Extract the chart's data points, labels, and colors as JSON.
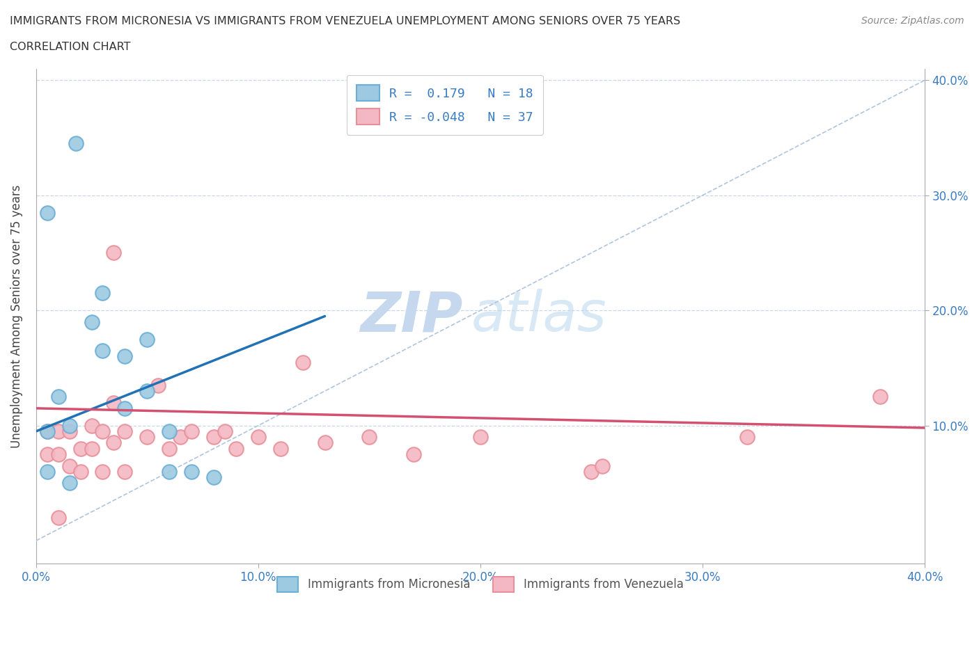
{
  "title_line1": "IMMIGRANTS FROM MICRONESIA VS IMMIGRANTS FROM VENEZUELA UNEMPLOYMENT AMONG SENIORS OVER 75 YEARS",
  "title_line2": "CORRELATION CHART",
  "source": "Source: ZipAtlas.com",
  "ylabel": "Unemployment Among Seniors over 75 years",
  "xlim": [
    0.0,
    0.4
  ],
  "ylim": [
    -0.02,
    0.41
  ],
  "xtick_labels": [
    "0.0%",
    "10.0%",
    "20.0%",
    "30.0%",
    "40.0%"
  ],
  "xtick_vals": [
    0.0,
    0.1,
    0.2,
    0.3,
    0.4
  ],
  "ytick_labels": [
    "10.0%",
    "20.0%",
    "30.0%",
    "40.0%"
  ],
  "ytick_vals": [
    0.1,
    0.2,
    0.3,
    0.4
  ],
  "micronesia_color": "#6baed6",
  "micronesia_face": "#9ecae1",
  "venezuela_color": "#e8909a",
  "venezuela_face": "#f4b8c4",
  "R_micronesia": 0.179,
  "N_micronesia": 18,
  "R_venezuela": -0.048,
  "N_venezuela": 37,
  "legend_label_micronesia": "Immigrants from Micronesia",
  "legend_label_venezuela": "Immigrants from Venezuela",
  "watermark_zip": "ZIP",
  "watermark_atlas": "atlas",
  "micronesia_x": [
    0.005,
    0.018,
    0.005,
    0.03,
    0.03,
    0.005,
    0.01,
    0.015,
    0.04,
    0.04,
    0.05,
    0.05,
    0.06,
    0.06,
    0.07,
    0.08,
    0.025,
    0.015
  ],
  "micronesia_y": [
    0.285,
    0.345,
    0.06,
    0.215,
    0.165,
    0.095,
    0.125,
    0.1,
    0.16,
    0.115,
    0.175,
    0.13,
    0.095,
    0.06,
    0.06,
    0.055,
    0.19,
    0.05
  ],
  "venezuela_x": [
    0.005,
    0.005,
    0.01,
    0.01,
    0.015,
    0.015,
    0.02,
    0.02,
    0.025,
    0.025,
    0.03,
    0.03,
    0.035,
    0.035,
    0.04,
    0.04,
    0.05,
    0.055,
    0.06,
    0.065,
    0.07,
    0.08,
    0.085,
    0.09,
    0.1,
    0.11,
    0.13,
    0.15,
    0.17,
    0.2,
    0.25,
    0.32,
    0.38,
    0.01,
    0.035,
    0.12,
    0.255
  ],
  "venezuela_y": [
    0.095,
    0.075,
    0.095,
    0.075,
    0.095,
    0.065,
    0.08,
    0.06,
    0.1,
    0.08,
    0.095,
    0.06,
    0.12,
    0.085,
    0.095,
    0.06,
    0.09,
    0.135,
    0.08,
    0.09,
    0.095,
    0.09,
    0.095,
    0.08,
    0.09,
    0.08,
    0.085,
    0.09,
    0.075,
    0.09,
    0.06,
    0.09,
    0.125,
    0.02,
    0.25,
    0.155,
    0.065
  ],
  "blue_line_x": [
    0.0,
    0.13
  ],
  "blue_line_y": [
    0.095,
    0.195
  ],
  "pink_line_x": [
    0.0,
    0.4
  ],
  "pink_line_y": [
    0.115,
    0.098
  ]
}
